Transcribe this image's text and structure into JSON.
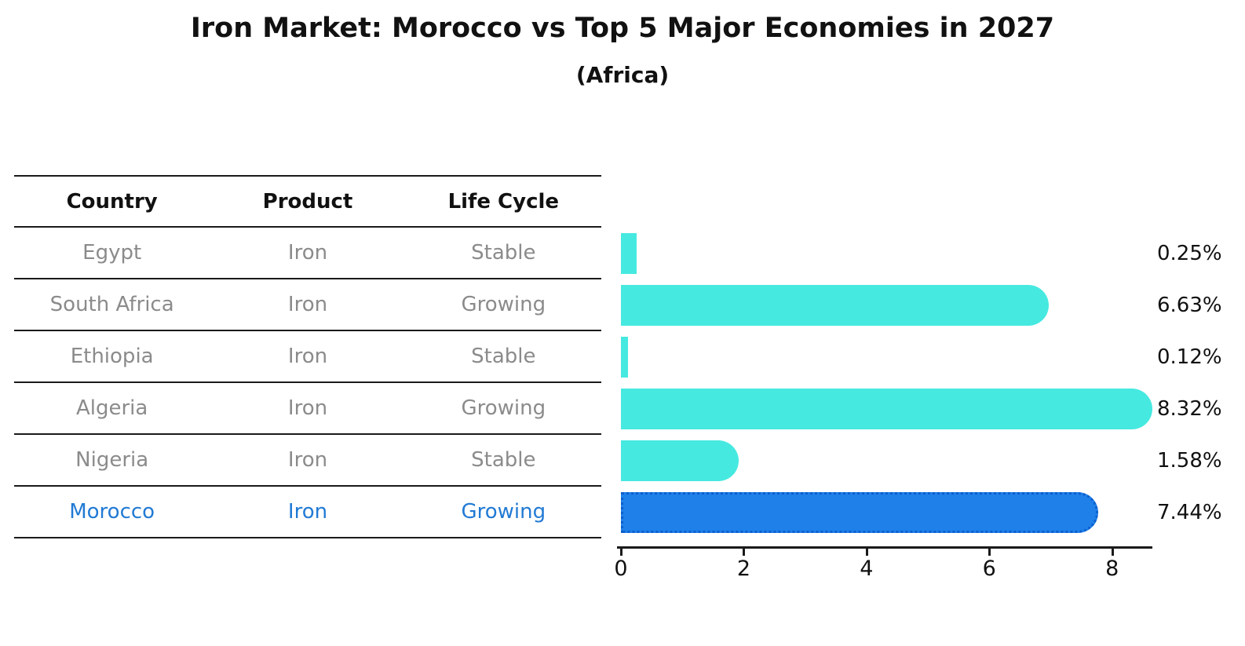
{
  "title": "Iron Market: Morocco vs Top 5 Major Economies in 2027",
  "subtitle": "(Africa)",
  "table": {
    "headers": [
      "Country",
      "Product",
      "Life Cycle"
    ],
    "rows": [
      {
        "country": "Egypt",
        "product": "Iron",
        "life_cycle": "Stable",
        "highlight": false
      },
      {
        "country": "South Africa",
        "product": "Iron",
        "life_cycle": "Growing",
        "highlight": false
      },
      {
        "country": "Ethiopia",
        "product": "Iron",
        "life_cycle": "Stable",
        "highlight": false
      },
      {
        "country": "Algeria",
        "product": "Iron",
        "life_cycle": "Growing",
        "highlight": false
      },
      {
        "country": "Nigeria",
        "product": "Iron",
        "life_cycle": "Stable",
        "highlight": false
      },
      {
        "country": "Morocco",
        "product": "Iron",
        "life_cycle": "Growing",
        "highlight": true
      }
    ]
  },
  "chart_data": {
    "type": "bar",
    "orientation": "horizontal",
    "title": "Iron Market: Morocco vs Top 5 Major Economies in 2027",
    "subtitle": "(Africa)",
    "categories": [
      "Egypt",
      "South Africa",
      "Ethiopia",
      "Algeria",
      "Nigeria",
      "Morocco"
    ],
    "values": [
      0.25,
      6.63,
      0.12,
      8.32,
      1.58,
      7.44
    ],
    "value_labels": [
      "0.25%",
      "6.63%",
      "0.12%",
      "8.32%",
      "1.58%",
      "7.44%"
    ],
    "x_ticks": [
      0,
      2,
      4,
      6,
      8
    ],
    "xlim": [
      0,
      8.72
    ],
    "highlight_index": 5,
    "grid": false,
    "legend": false,
    "colors": {
      "bar_default": "#46e9e0",
      "bar_highlight": "#1e80e8",
      "bar_highlight_border": "#0d5ecf",
      "highlight_text": "#217ad4",
      "text": "#111111",
      "muted_text": "#8b8b8b"
    }
  }
}
